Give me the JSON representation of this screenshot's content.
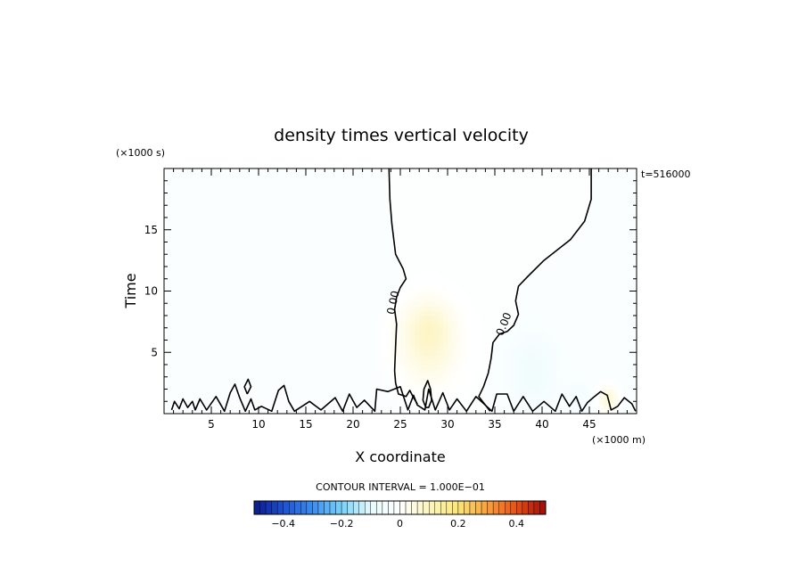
{
  "chart_data": {
    "type": "heatmap",
    "title": "density times vertical velocity",
    "xlabel": "X coordinate",
    "ylabel": "Time",
    "x_unit": "(×1000 m)",
    "y_unit": "(×1000 s)",
    "xlim": [
      0,
      50
    ],
    "ylim": [
      0,
      20
    ],
    "x_ticks": [
      5,
      10,
      15,
      20,
      25,
      30,
      35,
      40,
      45
    ],
    "y_ticks": [
      5,
      10,
      15
    ],
    "time_stamp": "t=516000",
    "contour_interval_label": "CONTOUR INTERVAL = 1.000E−01",
    "zero_contour_label": "0.00",
    "colorbar": {
      "min": -0.5,
      "max": 0.5,
      "ticks": [
        -0.4,
        -0.2,
        0,
        0.2,
        0.4
      ],
      "tick_labels": [
        "−0.4",
        "−0.2",
        "0",
        "0.2",
        "0.4"
      ],
      "colors": [
        "#0a1a8c",
        "#1e50d2",
        "#3c8cf0",
        "#78d2fa",
        "#e6fafc",
        "#ffffff",
        "#fcf5be",
        "#fae678",
        "#faa03c",
        "#e65014",
        "#a00a0a"
      ]
    },
    "background_value": -0.02,
    "blobs": [
      {
        "name": "positive-center",
        "x": 28,
        "y": 5.5,
        "sx": 2.2,
        "sy": 2.2,
        "value": 0.13
      },
      {
        "name": "positive-upper",
        "x": 28,
        "y": 7.5,
        "sx": 1.8,
        "sy": 1.5,
        "value": 0.07
      },
      {
        "name": "negative-right",
        "x": 39,
        "y": 3.5,
        "sx": 1.6,
        "sy": 1.8,
        "value": -0.06
      },
      {
        "name": "negative-far-right",
        "x": 44,
        "y": 1.2,
        "sx": 1.2,
        "sy": 1.0,
        "value": -0.04
      },
      {
        "name": "positive-far-right",
        "x": 47,
        "y": 1.2,
        "sx": 0.8,
        "sy": 0.8,
        "value": 0.06
      }
    ],
    "zero_contours": [
      {
        "name": "left-zero-contour",
        "points": [
          [
            23.8,
            20
          ],
          [
            23.9,
            17.5
          ],
          [
            24.1,
            15.5
          ],
          [
            24.5,
            13
          ],
          [
            25.3,
            11.8
          ],
          [
            25.6,
            11
          ],
          [
            25,
            10.3
          ],
          [
            24.6,
            9.5
          ],
          [
            24.4,
            8.5
          ],
          [
            24.6,
            7.3
          ],
          [
            24.5,
            5.5
          ],
          [
            24.4,
            3.5
          ],
          [
            24.5,
            2.5
          ],
          [
            24.8,
            1.6
          ],
          [
            25.6,
            1.4
          ],
          [
            26,
            1.9
          ],
          [
            26.4,
            1.3
          ],
          [
            26.8,
            0.8
          ]
        ]
      },
      {
        "name": "right-zero-contour",
        "points": [
          [
            45.2,
            20
          ],
          [
            45.2,
            17.5
          ],
          [
            44.5,
            15.7
          ],
          [
            43,
            14.2
          ],
          [
            40.2,
            12.5
          ],
          [
            38.5,
            11.2
          ],
          [
            37.5,
            10.4
          ],
          [
            37.2,
            9.2
          ],
          [
            37.5,
            8.1
          ],
          [
            37,
            7.2
          ],
          [
            36.3,
            6.7
          ],
          [
            35.5,
            6.5
          ],
          [
            34.8,
            5.8
          ],
          [
            34.6,
            4.5
          ],
          [
            34.3,
            3.3
          ],
          [
            33.8,
            2.2
          ],
          [
            33.3,
            1.4
          ],
          [
            33.9,
            0.8
          ],
          [
            34.5,
            0.2
          ]
        ]
      },
      {
        "name": "left-inner-contour",
        "points": [
          [
            27.7,
            0.5
          ],
          [
            27.4,
            1.1
          ],
          [
            27.5,
            2.0
          ],
          [
            27.9,
            2.7
          ],
          [
            28.2,
            2.0
          ],
          [
            28.3,
            1.1
          ],
          [
            28,
            0.5
          ],
          [
            27.7,
            0.5
          ]
        ]
      },
      {
        "name": "bottom-edge-contour",
        "points": [
          [
            0.8,
            0.3
          ],
          [
            1.1,
            1.0
          ],
          [
            1.6,
            0.4
          ],
          [
            2,
            1.2
          ],
          [
            2.5,
            0.5
          ],
          [
            3.0,
            1.0
          ],
          [
            3.3,
            0.3
          ],
          [
            3.8,
            1.2
          ],
          [
            4.5,
            0.3
          ],
          [
            5.5,
            1.4
          ],
          [
            6.4,
            0.2
          ],
          [
            7.0,
            1.7
          ],
          [
            7.5,
            2.4
          ],
          [
            8.0,
            1.3
          ],
          [
            8.6,
            0.2
          ],
          [
            9.2,
            1.2
          ],
          [
            9.6,
            0.3
          ],
          [
            10.3,
            0.6
          ],
          [
            11.4,
            0.2
          ],
          [
            12.1,
            1.9
          ],
          [
            12.7,
            2.3
          ],
          [
            13.2,
            1.0
          ],
          [
            13.8,
            0.2
          ],
          [
            15.4,
            1.0
          ],
          [
            16.6,
            0.3
          ],
          [
            18.1,
            1.3
          ],
          [
            18.9,
            0.2
          ],
          [
            19.6,
            1.6
          ],
          [
            20.4,
            0.5
          ],
          [
            21.2,
            1.1
          ],
          [
            22.3,
            0.2
          ],
          [
            22.5,
            2.0
          ],
          [
            23.7,
            1.8
          ],
          [
            25.0,
            2.2
          ],
          [
            25.8,
            0.3
          ],
          [
            26.4,
            1.5
          ],
          [
            26.8,
            0.7
          ],
          [
            27.6,
            0.3
          ],
          [
            28.0,
            2.0
          ],
          [
            28.7,
            0.3
          ],
          [
            29.5,
            1.7
          ],
          [
            30.2,
            0.3
          ],
          [
            31.0,
            1.2
          ],
          [
            32.0,
            0.2
          ],
          [
            33.0,
            1.4
          ],
          [
            34.7,
            0.2
          ],
          [
            35.2,
            1.6
          ],
          [
            36.3,
            1.6
          ],
          [
            37.0,
            0.2
          ],
          [
            38.0,
            1.4
          ],
          [
            39.0,
            0.2
          ],
          [
            40.2,
            1.0
          ],
          [
            41.4,
            0.2
          ],
          [
            42.1,
            1.6
          ],
          [
            42.9,
            0.6
          ],
          [
            43.6,
            1.4
          ],
          [
            44.2,
            0.2
          ],
          [
            44.8,
            0.9
          ],
          [
            45.4,
            1.3
          ],
          [
            46.2,
            1.8
          ],
          [
            46.9,
            1.5
          ],
          [
            47.3,
            0.3
          ],
          [
            48.0,
            0.6
          ],
          [
            48.7,
            1.3
          ],
          [
            49.5,
            0.8
          ],
          [
            49.9,
            0.2
          ]
        ]
      },
      {
        "name": "small-island-contour",
        "points": [
          [
            8.8,
            1.6
          ],
          [
            8.5,
            2.2
          ],
          [
            8.9,
            2.8
          ],
          [
            9.2,
            2.2
          ],
          [
            8.8,
            1.6
          ]
        ]
      }
    ]
  }
}
